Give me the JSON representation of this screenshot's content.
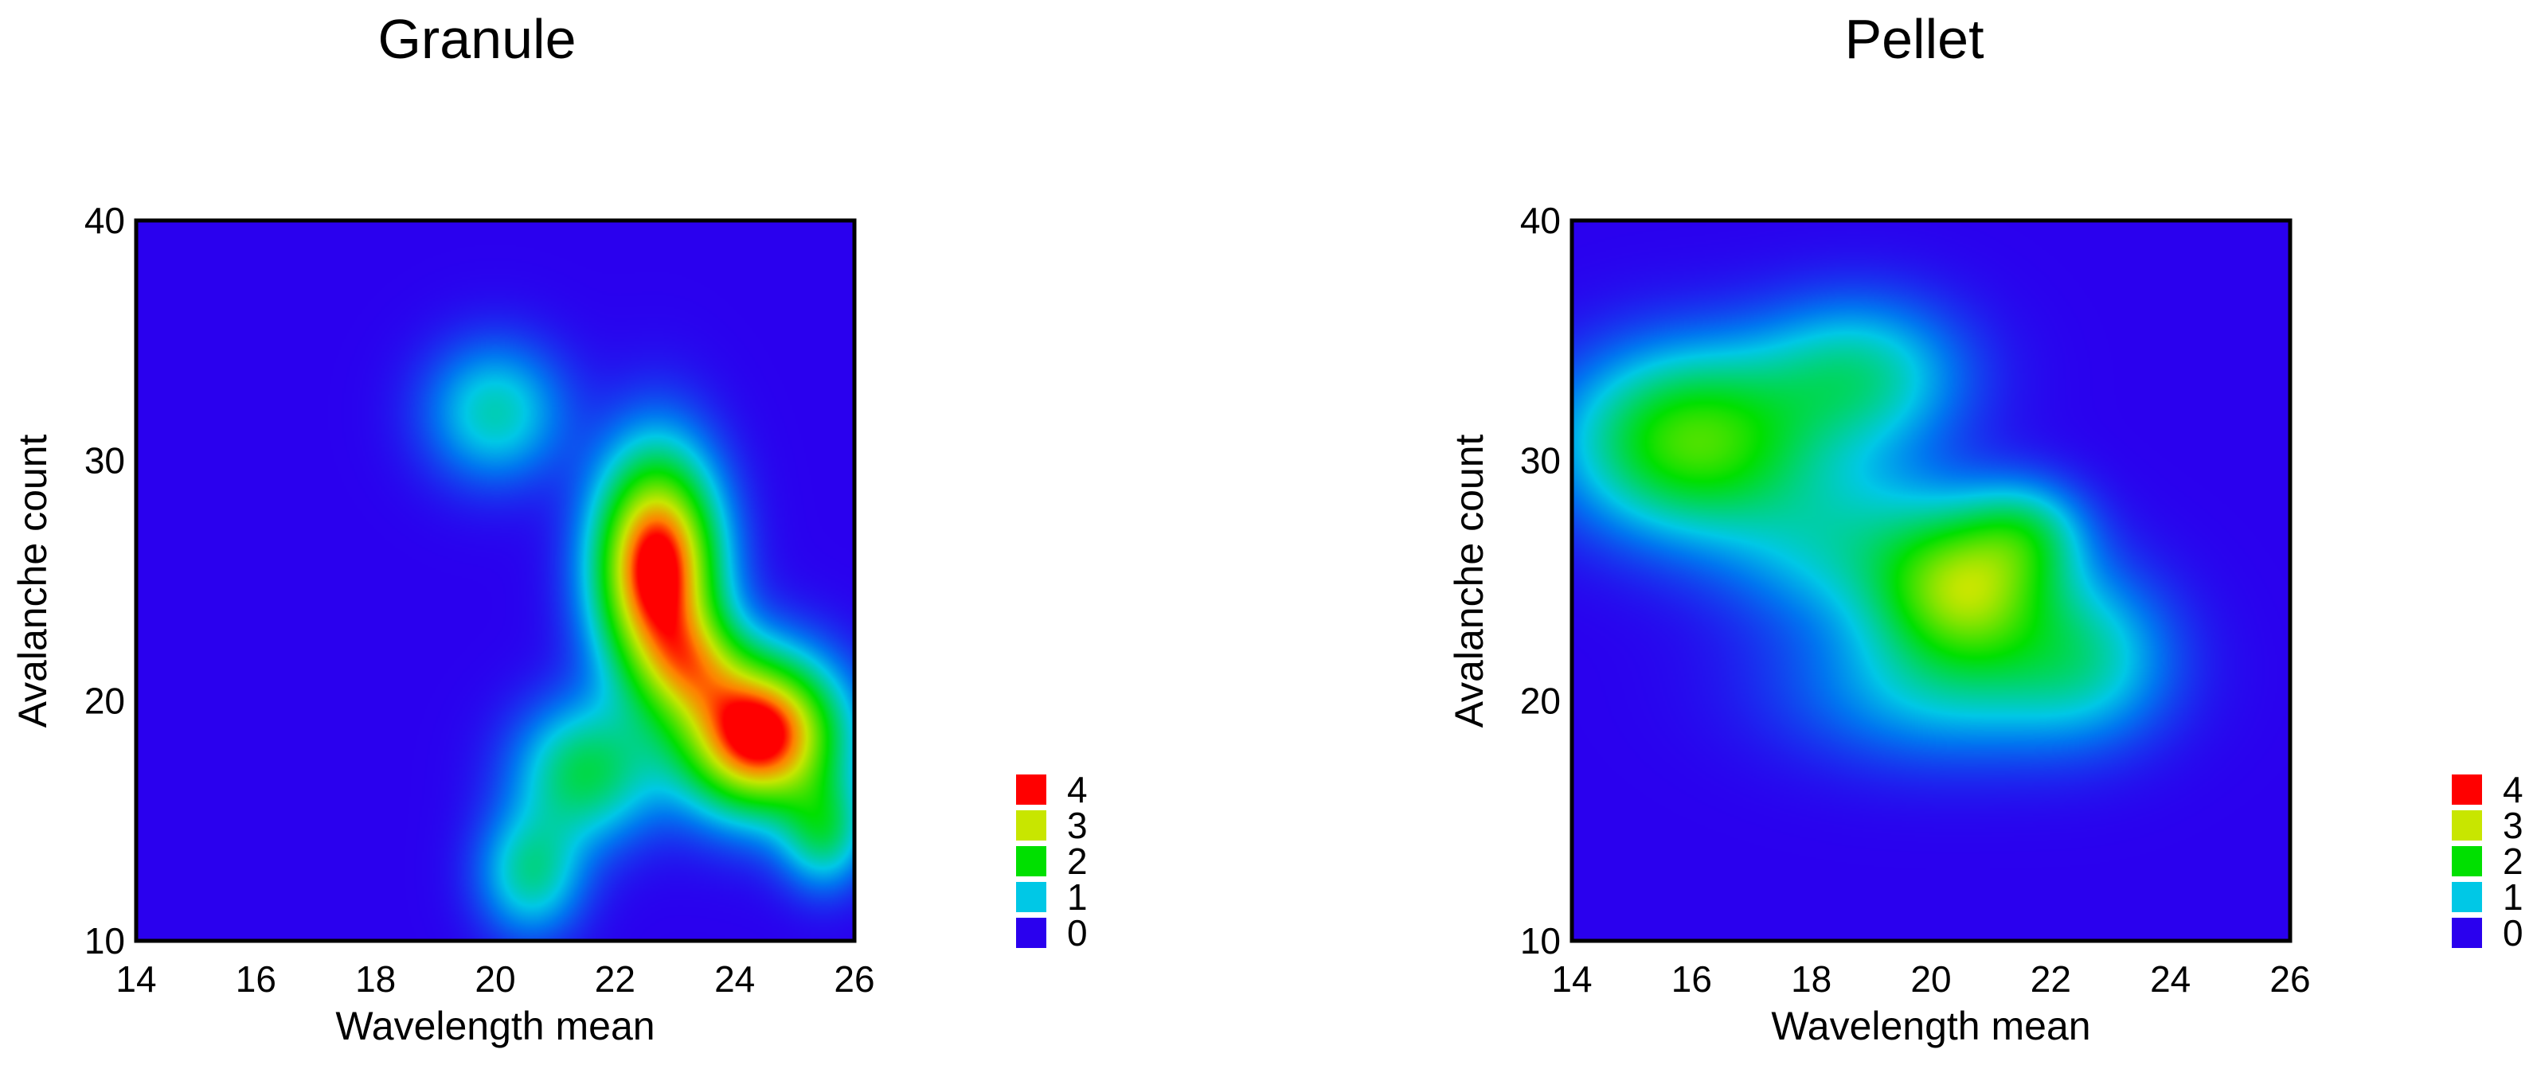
{
  "chart_data": [
    {
      "type": "heatmap",
      "title": "Granule",
      "xlabel": "Wavelength mean",
      "ylabel": "Avalanche count",
      "xlim": [
        14,
        26
      ],
      "ylim": [
        10,
        40
      ],
      "xticks": [
        14,
        16,
        18,
        20,
        22,
        24,
        26
      ],
      "yticks": [
        10,
        20,
        30,
        40
      ],
      "legend": {
        "levels": [
          4,
          3,
          2,
          1,
          0
        ],
        "colors": [
          "#ff0000",
          "#c8e600",
          "#00e000",
          "#00c8e6",
          "#2a00ee"
        ]
      },
      "density_peaks": [
        {
          "x": 20.0,
          "y": 32.0,
          "sx": 0.8,
          "sy": 2.0,
          "amp": 1.2
        },
        {
          "x": 22.7,
          "y": 25.5,
          "sx": 0.7,
          "sy": 3.2,
          "amp": 4.4
        },
        {
          "x": 24.4,
          "y": 18.6,
          "sx": 0.9,
          "sy": 2.2,
          "amp": 4.4
        },
        {
          "x": 23.3,
          "y": 21.5,
          "sx": 0.6,
          "sy": 1.6,
          "amp": 1.5
        },
        {
          "x": 21.5,
          "y": 17.0,
          "sx": 0.8,
          "sy": 2.0,
          "amp": 1.6
        },
        {
          "x": 20.6,
          "y": 12.8,
          "sx": 0.6,
          "sy": 1.8,
          "amp": 1.3
        },
        {
          "x": 25.5,
          "y": 14.5,
          "sx": 0.5,
          "sy": 1.6,
          "amp": 1.4
        }
      ]
    },
    {
      "type": "heatmap",
      "title": "Pellet",
      "xlabel": "Wavelength mean",
      "ylabel": "Avalanche count",
      "xlim": [
        14,
        26
      ],
      "ylim": [
        10,
        40
      ],
      "xticks": [
        14,
        16,
        18,
        20,
        22,
        24,
        26
      ],
      "yticks": [
        10,
        20,
        30,
        40
      ],
      "legend": {
        "levels": [
          4,
          3,
          2,
          1,
          0
        ],
        "colors": [
          "#ff0000",
          "#c8e600",
          "#00e000",
          "#00c8e6",
          "#2a00ee"
        ]
      },
      "density_peaks": [
        {
          "x": 16.0,
          "y": 30.8,
          "sx": 1.4,
          "sy": 2.6,
          "amp": 2.3
        },
        {
          "x": 18.8,
          "y": 33.5,
          "sx": 1.2,
          "sy": 2.2,
          "amp": 1.3
        },
        {
          "x": 20.6,
          "y": 24.6,
          "sx": 1.0,
          "sy": 2.2,
          "amp": 2.4
        },
        {
          "x": 21.6,
          "y": 27.0,
          "sx": 0.7,
          "sy": 1.5,
          "amp": 1.0
        },
        {
          "x": 18.6,
          "y": 26.5,
          "sx": 1.4,
          "sy": 2.4,
          "amp": 1.0
        },
        {
          "x": 22.6,
          "y": 22.0,
          "sx": 1.0,
          "sy": 2.4,
          "amp": 1.0
        },
        {
          "x": 20.2,
          "y": 20.5,
          "sx": 1.8,
          "sy": 2.2,
          "amp": 0.9
        }
      ]
    }
  ]
}
